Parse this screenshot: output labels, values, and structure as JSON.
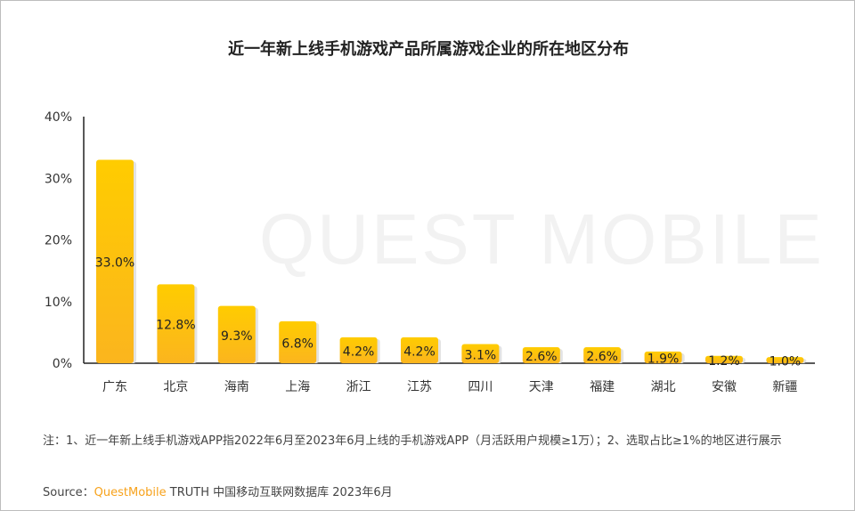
{
  "title": "近一年新上线手机游戏产品所属游戏企业的所在地区分布",
  "watermark": "QUEST MOBILE",
  "chart_data": {
    "type": "bar",
    "categories": [
      "广东",
      "北京",
      "海南",
      "上海",
      "浙江",
      "江苏",
      "四川",
      "天津",
      "福建",
      "湖北",
      "安徽",
      "新疆"
    ],
    "values": [
      33.0,
      12.8,
      9.3,
      6.8,
      4.2,
      4.2,
      3.1,
      2.6,
      2.6,
      1.9,
      1.2,
      1.0
    ],
    "data_labels": [
      "33.0%",
      "12.8%",
      "9.3%",
      "6.8%",
      "4.2%",
      "4.2%",
      "3.1%",
      "2.6%",
      "2.6%",
      "1.9%",
      "1.2%",
      "1.0%"
    ],
    "yticks": [
      "0%",
      "10%",
      "20%",
      "30%",
      "40%"
    ],
    "ylim": [
      0,
      40
    ],
    "grid": false,
    "colors": {
      "bar_top": "#ffcc00",
      "bar_bottom": "#fbb51e"
    }
  },
  "note": "注：1、近一年新上线手机游戏APP指2022年6月至2023年6月上线的手机游戏APP（月活跃用户规模≥1万）；2、选取占比≥1%的地区进行展示",
  "source": {
    "label": "Source：",
    "brand": "QuestMobile",
    "text": " TRUTH 中国移动互联网数据库 2023年6月"
  }
}
